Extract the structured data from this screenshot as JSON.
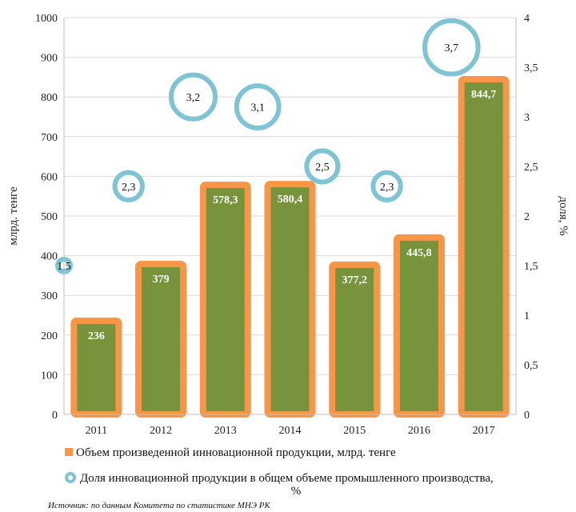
{
  "chart_data": {
    "type": "bar",
    "categories": [
      "2011",
      "2012",
      "2013",
      "2014",
      "2015",
      "2016",
      "2017"
    ],
    "series": [
      {
        "name": "Объем произведенной инновационной продукции, млрд. тенге",
        "type": "bar",
        "axis": "left",
        "values": [
          236,
          379,
          578.3,
          580.4,
          377.2,
          445.8,
          844.7
        ],
        "labels": [
          "236",
          "379",
          "578,3",
          "580,4",
          "377,2",
          "445,8",
          "844,7"
        ]
      },
      {
        "name": "Доля инновационной продукции в общем объеме промышленного производства, %",
        "legend_lines": [
          "Доля инновационной продукции в общем объеме промышленного производства,",
          "%"
        ],
        "type": "bubble",
        "axis": "right",
        "values": [
          1.5,
          2.3,
          3.2,
          3.1,
          2.5,
          2.3,
          3.7
        ],
        "labels": [
          "1,5",
          "2,3",
          "3,2",
          "3,1",
          "2,5",
          "2,3",
          "3,7"
        ]
      }
    ],
    "ylabel": "млрд. тенге",
    "y2label": "доля, %",
    "ylim": [
      0,
      1000
    ],
    "y2lim": [
      0,
      4
    ],
    "yticks": [
      "0",
      "100",
      "200",
      "300",
      "400",
      "500",
      "600",
      "700",
      "800",
      "900",
      "1000"
    ],
    "y2ticks": [
      "0",
      "0,5",
      "1",
      "1,5",
      "2",
      "2,5",
      "3",
      "3,5",
      "4"
    ],
    "grid": true,
    "legend_position": "bottom",
    "colors": {
      "bar_fill": "#77933c",
      "bar_border": "#f79646",
      "bubble": "#7fc4d4",
      "grid": "#d9d9d9"
    }
  },
  "source": "Источник: по данным Комитета по статистике МНЭ РК"
}
